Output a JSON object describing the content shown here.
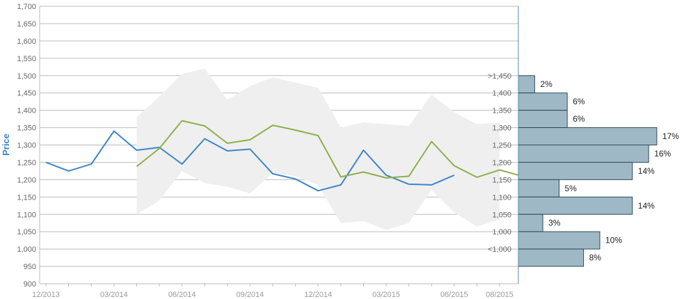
{
  "chart_data": {
    "type": "line",
    "ylabel": "Price",
    "xlabel": "",
    "ylim": [
      900,
      1700
    ],
    "y_ticks": [
      "900",
      "950",
      "1,000",
      "1,050",
      "1,100",
      "1,150",
      "1,200",
      "1,250",
      "1,300",
      "1,350",
      "1,400",
      "1,450",
      "1,500",
      "1,550",
      "1,600",
      "1,650",
      "1,700"
    ],
    "x_ticks": [
      "12/2013",
      "03/2014",
      "06/2014",
      "09/2014",
      "12/2014",
      "03/2015",
      "06/2015",
      "08/2015"
    ],
    "grid": true,
    "colors": {
      "series_blue": "#3d85c6",
      "series_green": "#8cb04a",
      "band": "#efefef",
      "bar_fill": "#9fb8c5",
      "bar_stroke": "#2c4a5a",
      "axis": "#5a8aa0",
      "grid": "#bbbbbb",
      "ylabel": "#3d85c6"
    },
    "series": [
      {
        "key": "blue",
        "x": [
          "12/2013",
          "01/2014",
          "02/2014",
          "03/2014",
          "04/2014",
          "05/2014",
          "06/2014",
          "07/2014",
          "08/2014",
          "09/2014",
          "10/2014",
          "11/2014",
          "12/2014",
          "01/2015",
          "02/2015",
          "03/2015",
          "04/2015",
          "05/2015",
          "06/2015"
        ],
        "values": [
          1250,
          1225,
          1245,
          1340,
          1285,
          1293,
          1245,
          1318,
          1283,
          1288,
          1217,
          1202,
          1168,
          1185,
          1285,
          1213,
          1187,
          1185,
          1213
        ]
      },
      {
        "key": "green",
        "x": [
          "04/2014",
          "05/2014",
          "06/2014",
          "07/2014",
          "08/2014",
          "09/2014",
          "10/2014",
          "11/2014",
          "12/2014",
          "01/2015",
          "02/2015",
          "03/2015",
          "04/2015",
          "05/2015",
          "06/2015",
          "07/2015",
          "08/2015",
          "09/2015"
        ],
        "values": [
          1238,
          1290,
          1370,
          1355,
          1305,
          1315,
          1357,
          1343,
          1327,
          1208,
          1222,
          1205,
          1210,
          1310,
          1240,
          1207,
          1228,
          1210
        ]
      }
    ],
    "band": {
      "x": [
        "04/2014",
        "05/2014",
        "06/2014",
        "07/2014",
        "08/2014",
        "09/2014",
        "10/2014",
        "11/2014",
        "12/2014",
        "01/2015",
        "02/2015",
        "03/2015",
        "04/2015",
        "05/2015",
        "06/2015",
        "07/2015",
        "08/2015"
      ],
      "upper": [
        1380,
        1440,
        1505,
        1520,
        1430,
        1470,
        1495,
        1480,
        1465,
        1350,
        1365,
        1360,
        1355,
        1445,
        1395,
        1360,
        1365
      ],
      "lower": [
        1100,
        1140,
        1225,
        1190,
        1180,
        1160,
        1220,
        1210,
        1185,
        1075,
        1080,
        1055,
        1075,
        1170,
        1105,
        1065,
        1085
      ]
    },
    "histogram": {
      "bins": [
        ">1,450",
        "1,400",
        "1,350",
        "1,300",
        "1,250",
        "1,200",
        "1,150",
        "1,100",
        "1,050",
        "1,000",
        "<1,000"
      ],
      "percentages": [
        2,
        6,
        6,
        17,
        16,
        14,
        5,
        14,
        3,
        10,
        8
      ],
      "labels": [
        "2%",
        "6%",
        "6%",
        "17%",
        "16%",
        "14%",
        "5%",
        "14%",
        "3%",
        "10%",
        "8%"
      ]
    }
  }
}
